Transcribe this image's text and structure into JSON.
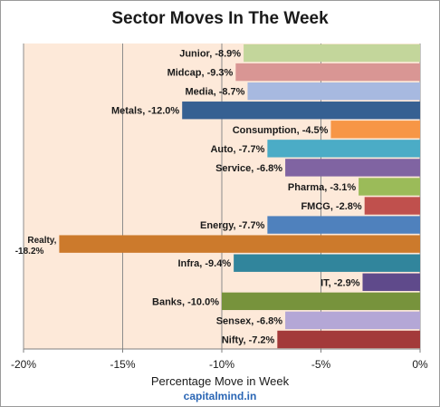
{
  "chart_data": {
    "type": "bar",
    "orientation": "horizontal",
    "title": "Sector Moves In The Week",
    "xlabel": "Percentage Move in Week",
    "ylabel": "",
    "xlim": [
      -20,
      0
    ],
    "xticks": [
      "-20%",
      "-15%",
      "-10%",
      "-5%",
      "0%"
    ],
    "grid": "vertical major",
    "background": "#fde9d9",
    "bars": [
      {
        "label": "Junior, -8.9%",
        "value": -8.9,
        "color": "#c3d69b"
      },
      {
        "label": "Midcap, -9.3%",
        "value": -9.3,
        "color": "#d99694"
      },
      {
        "label": "Media, -8.7%",
        "value": -8.7,
        "color": "#a7b9e0"
      },
      {
        "label": "Metals, -12.0%",
        "value": -12.0,
        "color": "#366092"
      },
      {
        "label": "Consumption, -4.5%",
        "value": -4.5,
        "color": "#f79646"
      },
      {
        "label": "Auto, -7.7%",
        "value": -7.7,
        "color": "#4bacc6"
      },
      {
        "label": "Service, -6.8%",
        "value": -6.8,
        "color": "#8064a2"
      },
      {
        "label": "Pharma, -3.1%",
        "value": -3.1,
        "color": "#9bbb59"
      },
      {
        "label": "FMCG, -2.8%",
        "value": -2.8,
        "color": "#c0504d"
      },
      {
        "label": "Energy, -7.7%",
        "value": -7.7,
        "color": "#4f81bd"
      },
      {
        "label": "Realty, -18.2%",
        "value": -18.2,
        "color": "#cc7a2c"
      },
      {
        "label": "Infra, -9.4%",
        "value": -9.4,
        "color": "#31859c"
      },
      {
        "label": "IT, -2.9%",
        "value": -2.9,
        "color": "#5f4a8b"
      },
      {
        "label": "Banks, -10.0%",
        "value": -10.0,
        "color": "#77933c"
      },
      {
        "label": "Sensex, -6.8%",
        "value": -6.8,
        "color": "#b4a7d6"
      },
      {
        "label": "Nifty, -7.2%",
        "value": -7.2,
        "color": "#a33a3a"
      }
    ]
  },
  "credit": "capitalmind.in"
}
